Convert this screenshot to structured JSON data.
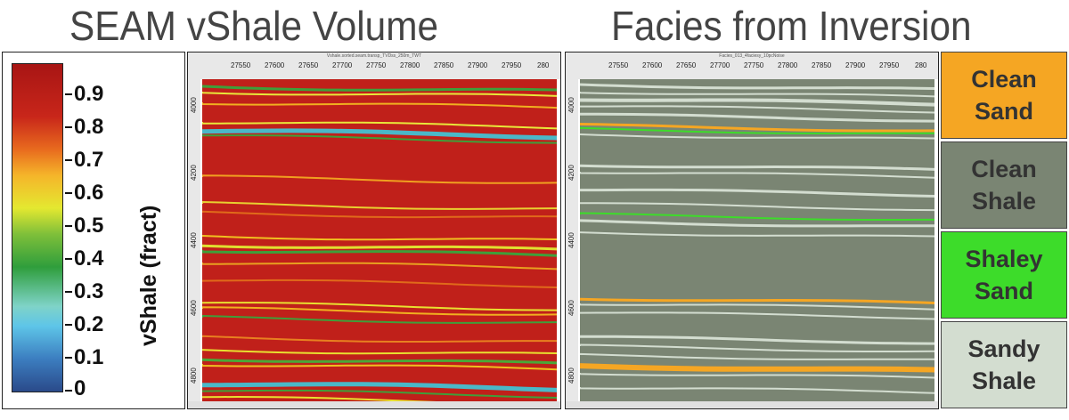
{
  "titles": {
    "left": "SEAM vShale Volume",
    "right": "Facies from Inversion"
  },
  "colorbar": {
    "axis_label": "vShale (fract)",
    "ticks": [
      "0.9",
      "0.8",
      "0.7",
      "0.6",
      "0.5",
      "0.4",
      "0.3",
      "0.2",
      "0.1",
      "0"
    ]
  },
  "left_plot": {
    "caption": "Vshale.sorted.seam.transp_TVDss_250m_TWT",
    "x_ticks": [
      "27550",
      "27600",
      "27650",
      "27700",
      "27750",
      "27800",
      "27850",
      "27900",
      "27950",
      "280"
    ],
    "y_ticks": [
      "4000",
      "4200",
      "4400",
      "4600",
      "4800"
    ]
  },
  "right_plot": {
    "caption": "Facies_013_4faciesy_10pcNoise",
    "x_ticks": [
      "27550",
      "27600",
      "27650",
      "27700",
      "27750",
      "27800",
      "27850",
      "27900",
      "27950",
      "280"
    ],
    "y_ticks": [
      "4000",
      "4200",
      "4400",
      "4600",
      "4800"
    ]
  },
  "legend": [
    {
      "label": "Clean\nSand",
      "color": "#f5a623"
    },
    {
      "label": "Clean\nShale",
      "color": "#7a8573"
    },
    {
      "label": "Shaley\nSand",
      "color": "#3ddc2a"
    },
    {
      "label": "Sandy\nShale",
      "color": "#d3ddd0"
    }
  ]
}
